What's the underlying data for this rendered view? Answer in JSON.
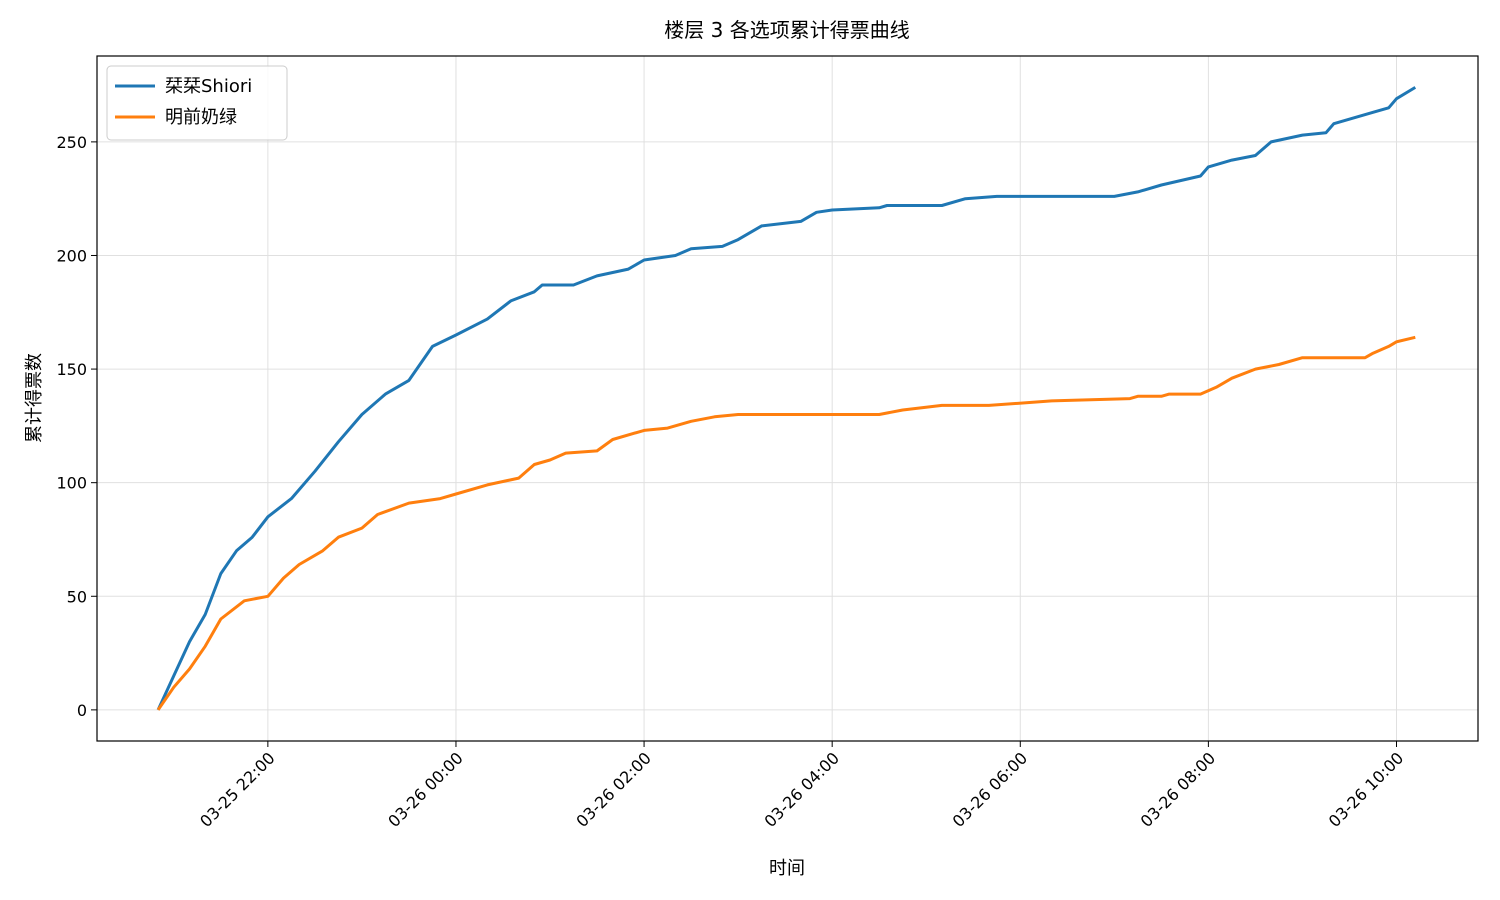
{
  "chart_data": {
    "type": "line",
    "title": "楼层 3 各选项累计得票曲线",
    "x_label": "时间",
    "y_label": "累计得票数",
    "xlim": [
      "03-25 20:11",
      "03-26 10:52"
    ],
    "xticks": [
      "03-25 22:00",
      "03-26 00:00",
      "03-26 02:00",
      "03-26 04:00",
      "03-26 06:00",
      "03-26 08:00",
      "03-26 10:00"
    ],
    "ylim": [
      -13.7,
      287.8
    ],
    "yticks": [
      0,
      50,
      100,
      150,
      200,
      250
    ],
    "grid": true,
    "legend": "upper left",
    "series": [
      {
        "name": "栞栞Shiori",
        "color": "#1f77b4",
        "x": [
          "03-25 20:50",
          "03-25 21:00",
          "03-25 21:10",
          "03-25 21:20",
          "03-25 21:30",
          "03-25 21:40",
          "03-25 21:50",
          "03-25 22:00",
          "03-25 22:15",
          "03-25 22:30",
          "03-25 22:45",
          "03-25 23:00",
          "03-25 23:15",
          "03-25 23:30",
          "03-25 23:45",
          "03-26 00:00",
          "03-26 00:20",
          "03-26 00:35",
          "03-26 00:50",
          "03-26 00:55",
          "03-26 01:15",
          "03-26 01:30",
          "03-26 01:50",
          "03-26 02:00",
          "03-26 02:20",
          "03-26 02:30",
          "03-26 02:50",
          "03-26 03:00",
          "03-26 03:15",
          "03-26 03:40",
          "03-26 03:50",
          "03-26 04:00",
          "03-26 04:30",
          "03-26 04:35",
          "03-26 05:10",
          "03-26 05:25",
          "03-26 05:45",
          "03-26 07:00",
          "03-26 07:15",
          "03-26 07:30",
          "03-26 07:55",
          "03-26 08:00",
          "03-26 08:15",
          "03-26 08:30",
          "03-26 08:40",
          "03-26 09:00",
          "03-26 09:15",
          "03-26 09:20",
          "03-26 09:45",
          "03-26 09:55",
          "03-26 10:00",
          "03-26 10:12"
        ],
        "values": [
          0,
          15,
          30,
          42,
          60,
          70,
          76,
          85,
          93,
          105,
          118,
          130,
          139,
          145,
          160,
          165,
          172,
          180,
          184,
          187,
          187,
          191,
          194,
          198,
          200,
          203,
          204,
          207,
          213,
          215,
          219,
          220,
          221,
          222,
          222,
          225,
          226,
          226,
          228,
          231,
          235,
          239,
          242,
          244,
          250,
          253,
          254,
          258,
          263,
          265,
          269,
          274
        ]
      },
      {
        "name": "明前奶绿",
        "color": "#ff7f0e",
        "x": [
          "03-25 20:50",
          "03-25 21:00",
          "03-25 21:10",
          "03-25 21:20",
          "03-25 21:30",
          "03-25 21:45",
          "03-25 22:00",
          "03-25 22:10",
          "03-25 22:20",
          "03-25 22:35",
          "03-25 22:45",
          "03-25 23:00",
          "03-25 23:10",
          "03-25 23:30",
          "03-25 23:50",
          "03-26 00:00",
          "03-26 00:20",
          "03-26 00:40",
          "03-26 00:50",
          "03-26 01:00",
          "03-26 01:10",
          "03-26 01:30",
          "03-26 01:40",
          "03-26 02:00",
          "03-26 02:15",
          "03-26 02:30",
          "03-26 02:45",
          "03-26 03:00",
          "03-26 04:30",
          "03-26 04:45",
          "03-26 05:10",
          "03-26 05:40",
          "03-26 06:20",
          "03-26 07:10",
          "03-26 07:15",
          "03-26 07:30",
          "03-26 07:35",
          "03-26 07:55",
          "03-26 08:05",
          "03-26 08:15",
          "03-26 08:30",
          "03-26 08:45",
          "03-26 09:00",
          "03-26 09:40",
          "03-26 09:45",
          "03-26 09:55",
          "03-26 10:00",
          "03-26 10:12"
        ],
        "values": [
          0,
          10,
          18,
          28,
          40,
          48,
          50,
          58,
          64,
          70,
          76,
          80,
          86,
          91,
          93,
          95,
          99,
          102,
          108,
          110,
          113,
          114,
          119,
          123,
          124,
          127,
          129,
          130,
          130,
          132,
          134,
          134,
          136,
          137,
          138,
          138,
          139,
          139,
          142,
          146,
          150,
          152,
          155,
          155,
          157,
          160,
          162,
          164
        ]
      }
    ]
  }
}
